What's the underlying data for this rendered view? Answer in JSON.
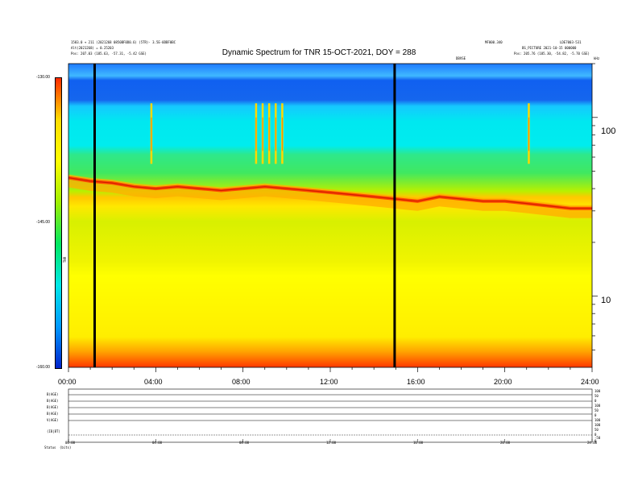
{
  "header": {
    "title": "Dynamic Spectrum for TNR 15-OCT-2021, DOY = 288",
    "left_line1": "1583.0 + 211 (2021268 0850BF0D0.6) (5TR)· 3.5E-0DBF0BC",
    "left_line2": "Alt(2021268) = 0.25203",
    "left_line3": "Pos:   207.03 (185.63, -57.31, -5.42 GSE)",
    "right_line1": "MF000.340",
    "right_line2": "LDE7003-531",
    "right_line3": "BS_PICTURE  2021-10-15 000000",
    "right_line4": "Pos:   205.76 (185.30, -54.82, -5.70 GSE)",
    "center_small": "DBVSE",
    "corner_small": "kHz"
  },
  "colorbar": {
    "ticks": [
      "-130.00",
      "-145.00",
      "-160.00"
    ],
    "label": "TNR",
    "stops": [
      "#ff2a00",
      "#ffdd00",
      "#ffff00",
      "#a0f000",
      "#00e860",
      "#00e8e8",
      "#0099ff",
      "#0022cc"
    ]
  },
  "time_axis": {
    "ticks": [
      "00:00",
      "04:00",
      "08:00",
      "12:00",
      "16:00",
      "20:00",
      "24:00"
    ]
  },
  "freq_axis": {
    "ticks": [
      "100",
      "10"
    ]
  },
  "chart_data": {
    "type": "heatmap",
    "title": "Dynamic Spectrum for TNR 15-OCT-2021, DOY = 288",
    "x_range_hours": [
      0,
      24
    ],
    "xlabel": "",
    "ylabel": "",
    "y_scale": "log",
    "y_range_khz": [
      4,
      200
    ],
    "color_range_db": [
      -160,
      -130
    ],
    "plasma_line": [
      {
        "t": 0,
        "f": 46
      },
      {
        "t": 1,
        "f": 44
      },
      {
        "t": 2,
        "f": 43
      },
      {
        "t": 3,
        "f": 41
      },
      {
        "t": 4,
        "f": 40
      },
      {
        "t": 5,
        "f": 41
      },
      {
        "t": 6,
        "f": 40
      },
      {
        "t": 7,
        "f": 39
      },
      {
        "t": 8,
        "f": 40
      },
      {
        "t": 9,
        "f": 41
      },
      {
        "t": 10,
        "f": 40
      },
      {
        "t": 11,
        "f": 39
      },
      {
        "t": 12,
        "f": 38
      },
      {
        "t": 13,
        "f": 37
      },
      {
        "t": 14,
        "f": 36
      },
      {
        "t": 15,
        "f": 35
      },
      {
        "t": 16,
        "f": 34
      },
      {
        "t": 17,
        "f": 36
      },
      {
        "t": 18,
        "f": 35
      },
      {
        "t": 19,
        "f": 34
      },
      {
        "t": 20,
        "f": 34
      },
      {
        "t": 21,
        "f": 33
      },
      {
        "t": 22,
        "f": 32
      },
      {
        "t": 23,
        "f": 31
      },
      {
        "t": 24,
        "f": 31
      }
    ],
    "data_gaps_hours": [
      1.2,
      14.95
    ],
    "bursts_hours": [
      3.8,
      8.6,
      8.9,
      9.2,
      9.5,
      9.8,
      21.1
    ]
  },
  "bottom_panel": {
    "rows": [
      {
        "label": "B(AGE)"
      },
      {
        "label": "B(AGE)"
      },
      {
        "label": "B(AGE)"
      },
      {
        "label": "B(AGE)"
      },
      {
        "label": "V(AGE)"
      },
      {
        "label": "(IB|BT)"
      }
    ],
    "status_label": "Status",
    "status_value": "(bits)",
    "right_ticks": [
      "100",
      "50",
      "0",
      "100",
      "50",
      "0",
      "100",
      "100",
      "50",
      "0",
      "-50",
      "0"
    ],
    "time_ticks": [
      "00:00",
      "04:00",
      "08:00",
      "12:00",
      "16:00",
      "20:00",
      "24:00"
    ]
  }
}
